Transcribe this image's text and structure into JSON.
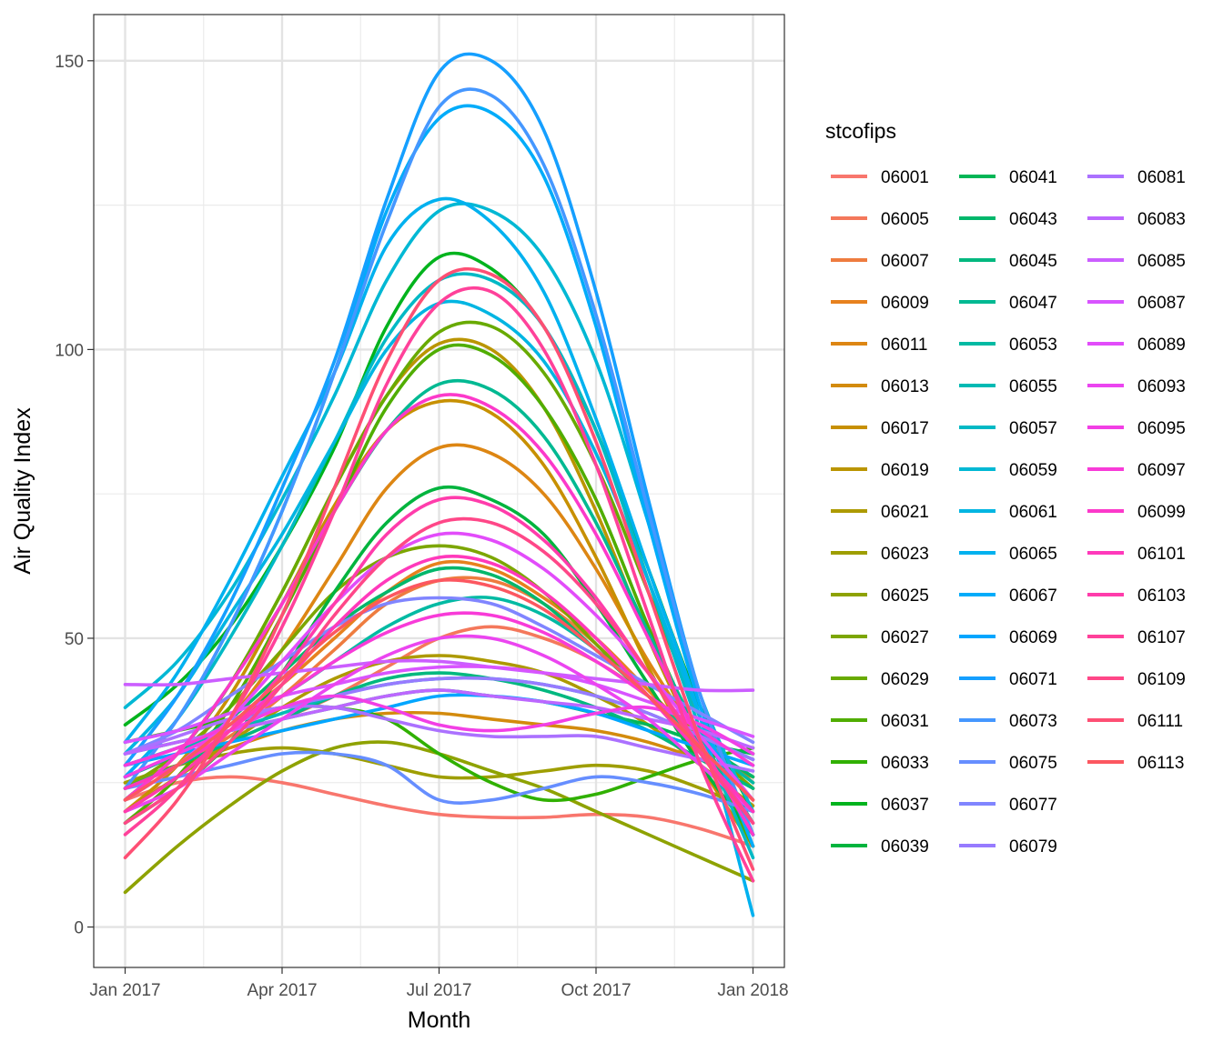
{
  "chart_data": {
    "type": "line",
    "title": "",
    "xlabel": "Month",
    "ylabel": "Air Quality Index",
    "x_ticks": [
      "Jan 2017",
      "Apr 2017",
      "Jul 2017",
      "Oct 2017",
      "Jan 2018"
    ],
    "x_tick_values": [
      0,
      3,
      6,
      9,
      12
    ],
    "y_ticks": [
      "0",
      "50",
      "100",
      "150"
    ],
    "y_tick_values": [
      0,
      50,
      100,
      150
    ],
    "xlim": [
      -0.6,
      12.6
    ],
    "ylim": [
      -7,
      158
    ],
    "grid": true,
    "legend": {
      "title": "stcofips",
      "placement": "right",
      "columns": 3
    },
    "smooth": true,
    "series": [
      {
        "name": "06001",
        "color": "#F8766D",
        "values": [
          22,
          25,
          26,
          25,
          23,
          21,
          19.5,
          19,
          19,
          19.5,
          19,
          17,
          14
        ]
      },
      {
        "name": "06005",
        "color": "#F4785B",
        "values": [
          25,
          28,
          32,
          36,
          40,
          45,
          50,
          52,
          50,
          46,
          40,
          33,
          25
        ]
      },
      {
        "name": "06007",
        "color": "#EE7C3F",
        "values": [
          24,
          28,
          33,
          40,
          48,
          56,
          60,
          60,
          56,
          49,
          40,
          31,
          22
        ]
      },
      {
        "name": "06009",
        "color": "#E7811E",
        "values": [
          26,
          30,
          35,
          42,
          50,
          58,
          63,
          62,
          57,
          50,
          41,
          32,
          24
        ]
      },
      {
        "name": "06011",
        "color": "#DD8613",
        "values": [
          22,
          28,
          36,
          48,
          62,
          76,
          83,
          82,
          75,
          62,
          46,
          32,
          18
        ]
      },
      {
        "name": "06013",
        "color": "#D38B0D",
        "values": [
          25,
          28,
          31,
          34,
          36,
          37,
          37,
          36,
          35,
          34,
          32,
          29,
          26
        ]
      },
      {
        "name": "06017",
        "color": "#C79000",
        "values": [
          20,
          28,
          40,
          56,
          73,
          86,
          91,
          89,
          80,
          64,
          45,
          28,
          14
        ]
      },
      {
        "name": "06019",
        "color": "#BA9500",
        "values": [
          22,
          30,
          42,
          58,
          76,
          92,
          101,
          100,
          90,
          72,
          50,
          31,
          16
        ]
      },
      {
        "name": "06021",
        "color": "#AD9A00",
        "values": [
          20,
          26,
          32,
          38,
          43,
          46,
          47,
          46,
          44,
          40,
          35,
          28,
          21
        ]
      },
      {
        "name": "06023",
        "color": "#9E9E00",
        "values": [
          25,
          28,
          30,
          31,
          30,
          28,
          26,
          26,
          27,
          28,
          27,
          24,
          20
        ]
      },
      {
        "name": "06025",
        "color": "#8EA200",
        "values": [
          6,
          14,
          21,
          27,
          31,
          32,
          30,
          27,
          24,
          20,
          16,
          12,
          8
        ]
      },
      {
        "name": "06027",
        "color": "#7CA600",
        "values": [
          24,
          30,
          38,
          48,
          58,
          64,
          66,
          64,
          58,
          49,
          40,
          32,
          24
        ]
      },
      {
        "name": "06029",
        "color": "#68AA00",
        "values": [
          22,
          30,
          42,
          58,
          76,
          92,
          103,
          104,
          96,
          80,
          58,
          36,
          16
        ]
      },
      {
        "name": "06031",
        "color": "#50AD00",
        "values": [
          18,
          26,
          38,
          54,
          72,
          90,
          100,
          99,
          90,
          74,
          52,
          32,
          14
        ]
      },
      {
        "name": "06033",
        "color": "#30B000",
        "values": [
          32,
          34,
          36,
          38,
          38,
          36,
          30,
          25,
          22,
          23,
          26,
          29,
          31
        ]
      },
      {
        "name": "06037",
        "color": "#00B31D",
        "values": [
          35,
          42,
          52,
          66,
          83,
          104,
          116,
          114,
          104,
          86,
          62,
          38,
          20
        ]
      },
      {
        "name": "06039",
        "color": "#00B43E",
        "values": [
          18,
          24,
          32,
          44,
          58,
          70,
          76,
          74,
          68,
          56,
          42,
          28,
          16
        ]
      },
      {
        "name": "06041",
        "color": "#00B656",
        "values": [
          30,
          32,
          34,
          36,
          38,
          40,
          41,
          40,
          39,
          37,
          35,
          32,
          30
        ]
      },
      {
        "name": "06043",
        "color": "#00B76B",
        "values": [
          26,
          30,
          36,
          44,
          52,
          58,
          62,
          61,
          56,
          48,
          40,
          32,
          26
        ]
      },
      {
        "name": "06045",
        "color": "#00B87F",
        "values": [
          24,
          28,
          32,
          36,
          40,
          43,
          44,
          43,
          41,
          38,
          34,
          29,
          24
        ]
      },
      {
        "name": "06047",
        "color": "#00B992",
        "values": [
          22,
          30,
          42,
          56,
          72,
          86,
          94,
          93,
          85,
          70,
          51,
          33,
          18
        ]
      },
      {
        "name": "06053",
        "color": "#00BAA3",
        "values": [
          26,
          30,
          35,
          40,
          46,
          52,
          56,
          57,
          54,
          48,
          40,
          32,
          25
        ]
      },
      {
        "name": "06055",
        "color": "#00BAB4",
        "values": [
          28,
          31,
          34,
          37,
          40,
          42,
          43,
          43,
          42,
          40,
          37,
          33,
          29
        ]
      },
      {
        "name": "06057",
        "color": "#00B9C5",
        "values": [
          26,
          36,
          50,
          66,
          84,
          102,
          112,
          112,
          104,
          86,
          60,
          34,
          12
        ]
      },
      {
        "name": "06059",
        "color": "#00B8D4",
        "values": [
          38,
          46,
          58,
          74,
          92,
          112,
          124,
          124,
          116,
          98,
          70,
          40,
          20
        ]
      },
      {
        "name": "06061",
        "color": "#00B5E2",
        "values": [
          30,
          40,
          54,
          68,
          84,
          100,
          108,
          106,
          98,
          82,
          60,
          36,
          16
        ]
      },
      {
        "name": "06065",
        "color": "#00B1EF",
        "values": [
          32,
          44,
          60,
          78,
          96,
          118,
          126,
          122,
          110,
          88,
          62,
          36,
          2
        ]
      },
      {
        "name": "06067",
        "color": "#00ACFA",
        "values": [
          26,
          36,
          52,
          72,
          96,
          124,
          140,
          141,
          130,
          104,
          70,
          38,
          14
        ]
      },
      {
        "name": "06069",
        "color": "#00A6FF",
        "values": [
          28,
          30,
          32,
          34,
          36,
          38,
          40,
          40,
          39,
          37,
          34,
          31,
          28
        ]
      },
      {
        "name": "06071",
        "color": "#159FFF",
        "values": [
          28,
          40,
          56,
          76,
          98,
          126,
          148,
          150,
          138,
          110,
          74,
          40,
          16
        ]
      },
      {
        "name": "06073",
        "color": "#4597FF",
        "values": [
          24,
          36,
          52,
          72,
          96,
          122,
          142,
          144,
          132,
          106,
          72,
          40,
          16
        ]
      },
      {
        "name": "06075",
        "color": "#668EFF",
        "values": [
          24,
          26,
          28,
          30,
          30,
          28,
          22,
          22,
          24,
          26,
          25,
          23,
          20
        ]
      },
      {
        "name": "06077",
        "color": "#8085FF",
        "values": [
          30,
          34,
          40,
          46,
          52,
          56,
          57,
          56,
          52,
          47,
          42,
          37,
          32
        ]
      },
      {
        "name": "06079",
        "color": "#977BFF",
        "values": [
          28,
          31,
          35,
          38,
          40,
          42,
          43,
          43,
          42,
          40,
          37,
          33,
          29
        ]
      },
      {
        "name": "06081",
        "color": "#AB71FF",
        "values": [
          30,
          33,
          36,
          38,
          38,
          36,
          34,
          33,
          33,
          33,
          31,
          29,
          27
        ]
      },
      {
        "name": "06083",
        "color": "#BC67FF",
        "values": [
          30,
          32,
          34,
          36,
          38,
          40,
          41,
          40,
          39,
          38,
          36,
          34,
          31
        ]
      },
      {
        "name": "06085",
        "color": "#CB5EFF",
        "values": [
          42,
          42,
          43,
          44,
          45,
          46,
          46,
          45,
          44,
          43,
          42,
          41,
          41
        ]
      },
      {
        "name": "06087",
        "color": "#D854FF",
        "values": [
          32,
          34,
          37,
          40,
          42,
          44,
          45,
          45,
          44,
          42,
          39,
          36,
          33
        ]
      },
      {
        "name": "06089",
        "color": "#E24CFA",
        "values": [
          22,
          28,
          36,
          46,
          56,
          64,
          68,
          67,
          62,
          54,
          44,
          33,
          22
        ]
      },
      {
        "name": "06093",
        "color": "#EB45F0",
        "values": [
          20,
          24,
          30,
          36,
          42,
          47,
          50,
          50,
          47,
          42,
          36,
          28,
          20
        ]
      },
      {
        "name": "06095",
        "color": "#F23FE5",
        "values": [
          26,
          30,
          34,
          38,
          40,
          38,
          35,
          34,
          35,
          37,
          38,
          35,
          30
        ]
      },
      {
        "name": "06097",
        "color": "#F83BD8",
        "values": [
          28,
          31,
          35,
          40,
          46,
          51,
          54,
          54,
          51,
          46,
          40,
          34,
          28
        ]
      },
      {
        "name": "06099",
        "color": "#FC39CA",
        "values": [
          22,
          30,
          42,
          56,
          72,
          86,
          92,
          90,
          82,
          68,
          50,
          32,
          16
        ]
      },
      {
        "name": "06101",
        "color": "#FF39BB",
        "values": [
          24,
          28,
          34,
          42,
          52,
          60,
          64,
          63,
          58,
          50,
          40,
          30,
          20
        ]
      },
      {
        "name": "06103",
        "color": "#FF3CAB",
        "values": [
          20,
          26,
          34,
          44,
          56,
          68,
          74,
          73,
          67,
          57,
          44,
          31,
          18
        ]
      },
      {
        "name": "06107",
        "color": "#FF419A",
        "values": [
          16,
          24,
          36,
          52,
          72,
          94,
          108,
          110,
          100,
          80,
          54,
          28,
          8
        ]
      },
      {
        "name": "06109",
        "color": "#FF4788",
        "values": [
          18,
          24,
          32,
          42,
          54,
          64,
          70,
          70,
          65,
          56,
          44,
          30,
          18
        ]
      },
      {
        "name": "06111",
        "color": "#FE4F74",
        "values": [
          12,
          22,
          36,
          54,
          76,
          98,
          112,
          113,
          104,
          84,
          58,
          32,
          10
        ]
      },
      {
        "name": "06113",
        "color": "#FC5760",
        "values": [
          22,
          28,
          35,
          43,
          51,
          57,
          60,
          59,
          55,
          48,
          40,
          31,
          22
        ]
      }
    ]
  }
}
